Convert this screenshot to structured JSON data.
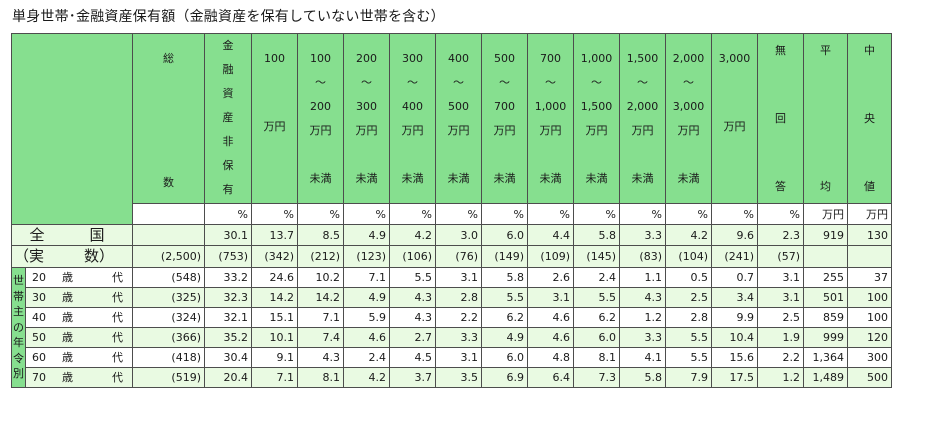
{
  "title": "単身世帯･金融資産保有額（金融資産を保有していない世帯を含む）",
  "col_headers": [
    {
      "lines": [
        "総",
        "",
        "",
        "",
        "数"
      ]
    },
    {
      "lines": [
        "金",
        "融",
        "資",
        "産",
        "非",
        "保",
        "有"
      ]
    },
    {
      "lines": [
        "100",
        "",
        "万円",
        "",
        "",
        "未満"
      ]
    },
    {
      "lines": [
        "100",
        "～",
        "200",
        "万円",
        "",
        "未満"
      ]
    },
    {
      "lines": [
        "200",
        "～",
        "300",
        "万円",
        "",
        "未満"
      ]
    },
    {
      "lines": [
        "300",
        "～",
        "400",
        "万円",
        "",
        "未満"
      ]
    },
    {
      "lines": [
        "400",
        "～",
        "500",
        "万円",
        "",
        "未満"
      ]
    },
    {
      "lines": [
        "500",
        "～",
        "700",
        "万円",
        "",
        "未満"
      ]
    },
    {
      "lines": [
        "700",
        "～",
        "1,000",
        "万円",
        "",
        "未満"
      ]
    },
    {
      "lines": [
        "1,000",
        "～",
        "1,500",
        "万円",
        "",
        "未満"
      ]
    },
    {
      "lines": [
        "1,500",
        "～",
        "2,000",
        "万円",
        "",
        "未満"
      ]
    },
    {
      "lines": [
        "2,000",
        "～",
        "3,000",
        "万円",
        "",
        "未満"
      ]
    },
    {
      "lines": [
        "3,000",
        "",
        "万円",
        "",
        "",
        "以上"
      ]
    },
    {
      "lines": [
        "無",
        "",
        "回",
        "",
        "答"
      ]
    },
    {
      "lines": [
        "平",
        "",
        "",
        "",
        "均"
      ]
    },
    {
      "lines": [
        "中",
        "",
        "央",
        "",
        "値"
      ]
    }
  ],
  "units": [
    "",
    "%",
    "%",
    "%",
    "%",
    "%",
    "%",
    "%",
    "%",
    "%",
    "%",
    "%",
    "%",
    "%",
    "万円",
    "万円"
  ],
  "national": {
    "label_left": "全",
    "label_right": "国",
    "values": [
      "",
      "30.1",
      "13.7",
      "8.5",
      "4.9",
      "4.2",
      "3.0",
      "6.0",
      "4.4",
      "5.8",
      "3.3",
      "4.2",
      "9.6",
      "2.3",
      "919",
      "130"
    ]
  },
  "counts": {
    "label_left": "（実",
    "label_right": "数）",
    "values": [
      "(2,500)",
      "(753)",
      "(342)",
      "(212)",
      "(123)",
      "(106)",
      "(76)",
      "(149)",
      "(109)",
      "(145)",
      "(83)",
      "(104)",
      "(241)",
      "(57)",
      "",
      ""
    ]
  },
  "side_label": [
    "世",
    "帯",
    "主",
    "の",
    "年",
    "令",
    "別"
  ],
  "age_rows": [
    {
      "age": "20",
      "sai": "歳",
      "dai": "代",
      "values": [
        "(548)",
        "33.2",
        "24.6",
        "10.2",
        "7.1",
        "5.5",
        "3.1",
        "5.8",
        "2.6",
        "2.4",
        "1.1",
        "0.5",
        "0.7",
        "3.1",
        "255",
        "37"
      ]
    },
    {
      "age": "30",
      "sai": "歳",
      "dai": "代",
      "values": [
        "(325)",
        "32.3",
        "14.2",
        "14.2",
        "4.9",
        "4.3",
        "2.8",
        "5.5",
        "3.1",
        "5.5",
        "4.3",
        "2.5",
        "3.4",
        "3.1",
        "501",
        "100"
      ]
    },
    {
      "age": "40",
      "sai": "歳",
      "dai": "代",
      "values": [
        "(324)",
        "32.1",
        "15.1",
        "7.1",
        "5.9",
        "4.3",
        "2.2",
        "6.2",
        "4.6",
        "6.2",
        "1.2",
        "2.8",
        "9.9",
        "2.5",
        "859",
        "100"
      ]
    },
    {
      "age": "50",
      "sai": "歳",
      "dai": "代",
      "values": [
        "(366)",
        "35.2",
        "10.1",
        "7.4",
        "4.6",
        "2.7",
        "3.3",
        "4.9",
        "4.6",
        "6.0",
        "3.3",
        "5.5",
        "10.4",
        "1.9",
        "999",
        "120"
      ]
    },
    {
      "age": "60",
      "sai": "歳",
      "dai": "代",
      "values": [
        "(418)",
        "30.4",
        "9.1",
        "4.3",
        "2.4",
        "4.5",
        "3.1",
        "6.0",
        "4.8",
        "8.1",
        "4.1",
        "5.5",
        "15.6",
        "2.2",
        "1,364",
        "300"
      ]
    },
    {
      "age": "70",
      "sai": "歳",
      "dai": "代",
      "values": [
        "(519)",
        "20.4",
        "7.1",
        "8.1",
        "4.2",
        "3.7",
        "3.5",
        "6.9",
        "6.4",
        "7.3",
        "5.8",
        "7.9",
        "17.5",
        "1.2",
        "1,489",
        "500"
      ]
    }
  ]
}
